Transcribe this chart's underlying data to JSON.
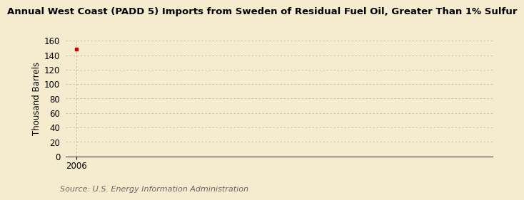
{
  "title": "Annual West Coast (PADD 5) Imports from Sweden of Residual Fuel Oil, Greater Than 1% Sulfur",
  "ylabel": "Thousand Barrels",
  "source": "Source: U.S. Energy Information Administration",
  "background_color": "#f5ecd0",
  "data_x": [
    2006
  ],
  "data_y": [
    148
  ],
  "marker_color": "#cc0000",
  "ylim": [
    0,
    160
  ],
  "yticks": [
    0,
    20,
    40,
    60,
    80,
    100,
    120,
    140,
    160
  ],
  "xlim": [
    2005.4,
    2030
  ],
  "xticks": [
    2006
  ],
  "grid_color": "#bbbbaa",
  "title_fontsize": 9.5,
  "axis_fontsize": 8.5,
  "tick_fontsize": 8.5,
  "source_fontsize": 8.0
}
